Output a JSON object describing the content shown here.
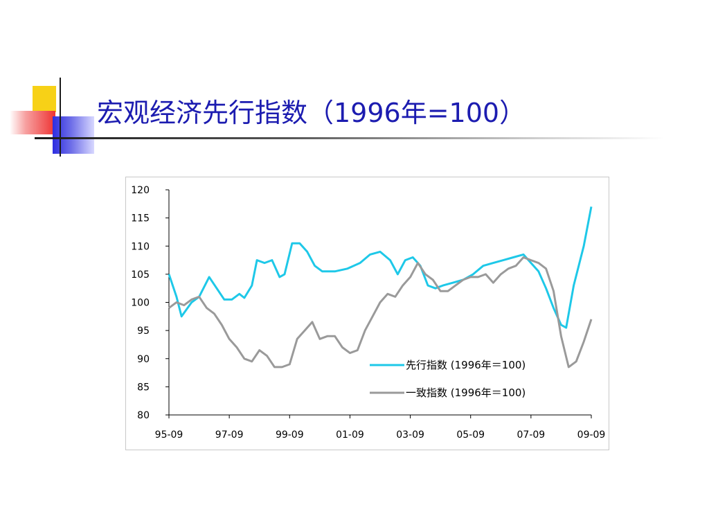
{
  "slide": {
    "title": "宏观经济先行指数（1996年=100）"
  },
  "colors": {
    "title": "#1c1cb0",
    "leading": "#1ec8e8",
    "coincident": "#9a9a9a",
    "accent_yellow": "#f7d117",
    "accent_red": "#ee3333",
    "accent_blue": "#2d2de0"
  },
  "chart_data": {
    "type": "line",
    "title": "",
    "xlabel": "",
    "ylabel": "",
    "ylim": [
      80,
      120
    ],
    "yticks": [
      80,
      85,
      90,
      95,
      100,
      105,
      110,
      115,
      120
    ],
    "xlim": [
      "1995-09",
      "2009-09"
    ],
    "xtick_labels": [
      "95-09",
      "97-09",
      "99-09",
      "01-09",
      "03-09",
      "05-09",
      "07-09",
      "09-09"
    ],
    "xtick_dates": [
      "1995-09",
      "1997-09",
      "1999-09",
      "2001-09",
      "2003-09",
      "2005-09",
      "2007-09",
      "2009-09"
    ],
    "legend_position": "lower-right",
    "grid": false,
    "series": [
      {
        "name": "先行指数 (1996年＝100)",
        "color": "#1ec8e8",
        "points": [
          [
            "1995-09",
            105
          ],
          [
            "1995-12",
            101
          ],
          [
            "1996-02",
            97.5
          ],
          [
            "1996-06",
            100
          ],
          [
            "1996-09",
            101
          ],
          [
            "1997-01",
            104.5
          ],
          [
            "1997-04",
            102.5
          ],
          [
            "1997-07",
            100.5
          ],
          [
            "1997-10",
            100.5
          ],
          [
            "1998-01",
            101.5
          ],
          [
            "1998-03",
            100.8
          ],
          [
            "1998-06",
            103
          ],
          [
            "1998-08",
            107.5
          ],
          [
            "1998-11",
            107
          ],
          [
            "1999-02",
            107.5
          ],
          [
            "1999-05",
            104.5
          ],
          [
            "1999-07",
            105
          ],
          [
            "1999-10",
            110.5
          ],
          [
            "2000-01",
            110.5
          ],
          [
            "2000-04",
            109
          ],
          [
            "2000-07",
            106.5
          ],
          [
            "2000-10",
            105.5
          ],
          [
            "2001-03",
            105.5
          ],
          [
            "2001-08",
            106
          ],
          [
            "2002-01",
            107
          ],
          [
            "2002-05",
            108.5
          ],
          [
            "2002-09",
            109
          ],
          [
            "2003-01",
            107.5
          ],
          [
            "2003-04",
            105
          ],
          [
            "2003-07",
            107.5
          ],
          [
            "2003-10",
            108
          ],
          [
            "2004-01",
            106.5
          ],
          [
            "2004-04",
            103
          ],
          [
            "2004-07",
            102.5
          ],
          [
            "2004-10",
            103
          ],
          [
            "2005-02",
            103.5
          ],
          [
            "2005-06",
            104
          ],
          [
            "2005-10",
            105
          ],
          [
            "2006-02",
            106.5
          ],
          [
            "2006-06",
            107
          ],
          [
            "2006-10",
            107.5
          ],
          [
            "2007-02",
            108
          ],
          [
            "2007-06",
            108.5
          ],
          [
            "2007-09",
            107
          ],
          [
            "2007-12",
            105.5
          ],
          [
            "2008-03",
            102.5
          ],
          [
            "2008-06",
            99
          ],
          [
            "2008-09",
            96
          ],
          [
            "2008-11",
            95.5
          ],
          [
            "2009-02",
            103
          ],
          [
            "2009-06",
            110
          ],
          [
            "2009-09",
            117
          ]
        ]
      },
      {
        "name": "一致指数 (1996年＝100)",
        "color": "#9a9a9a",
        "points": [
          [
            "1995-09",
            99
          ],
          [
            "1995-12",
            100
          ],
          [
            "1996-03",
            99.5
          ],
          [
            "1996-06",
            100.5
          ],
          [
            "1996-09",
            101
          ],
          [
            "1996-12",
            99
          ],
          [
            "1997-03",
            98
          ],
          [
            "1997-06",
            96
          ],
          [
            "1997-09",
            93.5
          ],
          [
            "1997-12",
            92
          ],
          [
            "1998-03",
            90
          ],
          [
            "1998-06",
            89.5
          ],
          [
            "1998-09",
            91.5
          ],
          [
            "1998-12",
            90.5
          ],
          [
            "1999-03",
            88.5
          ],
          [
            "1999-06",
            88.5
          ],
          [
            "1999-09",
            89
          ],
          [
            "1999-12",
            93.5
          ],
          [
            "2000-03",
            95
          ],
          [
            "2000-06",
            96.5
          ],
          [
            "2000-09",
            93.5
          ],
          [
            "2000-12",
            94
          ],
          [
            "2001-03",
            94
          ],
          [
            "2001-06",
            92
          ],
          [
            "2001-09",
            91
          ],
          [
            "2001-12",
            91.5
          ],
          [
            "2002-03",
            95
          ],
          [
            "2002-06",
            97.5
          ],
          [
            "2002-09",
            100
          ],
          [
            "2002-12",
            101.5
          ],
          [
            "2003-03",
            101
          ],
          [
            "2003-06",
            103
          ],
          [
            "2003-09",
            104.5
          ],
          [
            "2003-12",
            107
          ],
          [
            "2004-03",
            105
          ],
          [
            "2004-06",
            104
          ],
          [
            "2004-09",
            102
          ],
          [
            "2004-12",
            102
          ],
          [
            "2005-03",
            103
          ],
          [
            "2005-06",
            104
          ],
          [
            "2005-09",
            104.5
          ],
          [
            "2005-12",
            104.5
          ],
          [
            "2006-03",
            105
          ],
          [
            "2006-06",
            103.5
          ],
          [
            "2006-09",
            105
          ],
          [
            "2006-12",
            106
          ],
          [
            "2007-03",
            106.5
          ],
          [
            "2007-06",
            108
          ],
          [
            "2007-09",
            107.5
          ],
          [
            "2007-12",
            107
          ],
          [
            "2008-03",
            106
          ],
          [
            "2008-06",
            102
          ],
          [
            "2008-09",
            94
          ],
          [
            "2008-12",
            88.5
          ],
          [
            "2009-03",
            89.5
          ],
          [
            "2009-06",
            93
          ],
          [
            "2009-09",
            97
          ]
        ]
      }
    ]
  }
}
